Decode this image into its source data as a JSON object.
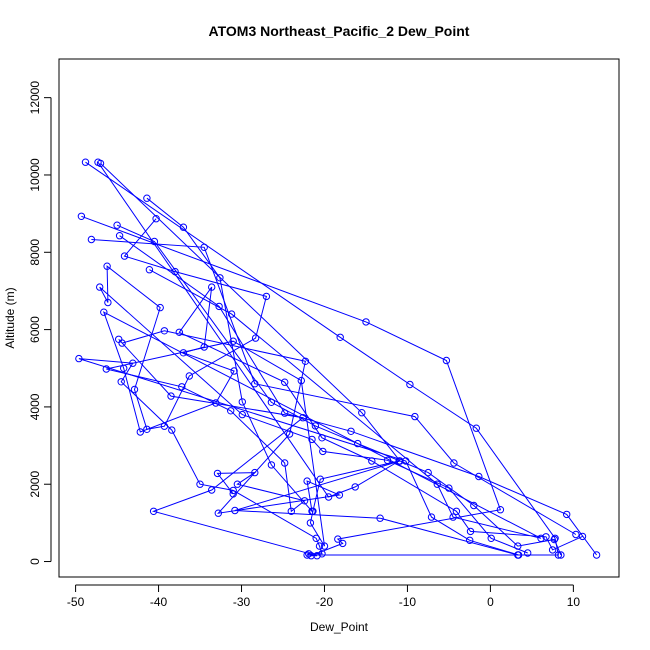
{
  "chart_data": {
    "type": "scatter",
    "title": "ATOM3 Northeast_Pacific_2 Dew_Point",
    "xlabel": "Dew_Point",
    "ylabel": "Altitude (m)",
    "xlim": [
      -52,
      15.5
    ],
    "ylim": [
      -400,
      13000
    ],
    "x_ticks": [
      -50,
      -40,
      -30,
      -20,
      -10,
      0,
      10
    ],
    "y_ticks": [
      0,
      2000,
      4000,
      6000,
      8000,
      10000,
      12000
    ],
    "grid": false,
    "color": "#0000ff",
    "marker": "open-circle",
    "series": [
      {
        "points": [
          [
            -48.8,
            10330
          ],
          [
            -18.1,
            5800
          ],
          [
            -9.7,
            4580
          ],
          [
            -1.7,
            3450
          ],
          [
            7.8,
            600
          ],
          [
            8.2,
            170
          ],
          [
            -22.1,
            170
          ],
          [
            -21.9,
            200
          ],
          [
            -20.3,
            200
          ],
          [
            -20.6,
            400
          ],
          [
            -21.0,
            600
          ],
          [
            -31.0,
            1840
          ],
          [
            -35.0,
            2000
          ],
          [
            -38.4,
            3400
          ],
          [
            -44.5,
            4650
          ],
          [
            -43.1,
            5130
          ],
          [
            -49.6,
            5250
          ],
          [
            -10.2,
            2600
          ],
          [
            -7.1,
            1150
          ],
          [
            -2.5,
            550
          ],
          [
            3.4,
            170
          ]
        ]
      },
      {
        "points": [
          [
            -47.3,
            10330
          ],
          [
            -19.5,
            1670
          ],
          [
            -16.3,
            1930
          ],
          [
            -11.0,
            2600
          ],
          [
            -20.5,
            2130
          ],
          [
            -21.4,
            1300
          ],
          [
            -21.7,
            1000
          ],
          [
            -20.0,
            400
          ],
          [
            -22.8,
            4680
          ],
          [
            -31.0,
            5700
          ],
          [
            -46.3,
            4980
          ],
          [
            -37.2,
            4520
          ],
          [
            -31.3,
            3900
          ],
          [
            -24.8,
            2550
          ],
          [
            -24.0,
            1300
          ],
          [
            -22.4,
            1570
          ],
          [
            -30.5,
            2000
          ],
          [
            -28.4,
            2300
          ],
          [
            -32.9,
            2280
          ],
          [
            -31.0,
            1750
          ]
        ]
      },
      {
        "points": [
          [
            -47.0,
            10300
          ],
          [
            -15.5,
            3850
          ],
          [
            -10.9,
            2600
          ],
          [
            -30.8,
            1320
          ],
          [
            -13.3,
            1120
          ],
          [
            3.3,
            170
          ]
        ]
      },
      {
        "points": [
          [
            -49.3,
            8930
          ],
          [
            -15.0,
            6200
          ],
          [
            -5.3,
            5200
          ],
          [
            1.2,
            1340
          ],
          [
            -18.4,
            580
          ],
          [
            -17.8,
            470
          ],
          [
            -21.6,
            150
          ],
          [
            -20.9,
            150
          ],
          [
            -40.6,
            1300
          ],
          [
            -33.6,
            1850
          ],
          [
            -22.6,
            3720
          ],
          [
            -38.5,
            4280
          ],
          [
            -44.8,
            5750
          ]
        ]
      },
      {
        "points": [
          [
            -48.1,
            8330
          ],
          [
            -34.5,
            8130
          ],
          [
            -28.4,
            4600
          ],
          [
            -9.1,
            3750
          ],
          [
            -4.4,
            2550
          ],
          [
            10.3,
            700
          ]
        ]
      },
      {
        "points": [
          [
            -41.4,
            9400
          ],
          [
            -37.0,
            8650
          ],
          [
            -32.6,
            7340
          ],
          [
            -29.9,
            4130
          ],
          [
            -26.4,
            2500
          ],
          [
            -21.5,
            1300
          ],
          [
            -22.1,
            2080
          ],
          [
            -18.2,
            1720
          ],
          [
            -32.8,
            1250
          ],
          [
            -24.2,
            3300
          ],
          [
            -22.3,
            5180
          ],
          [
            -39.3,
            5970
          ],
          [
            -44.4,
            5650
          ]
        ]
      },
      {
        "points": [
          [
            -45.0,
            8700
          ],
          [
            -40.5,
            8280
          ],
          [
            -26.4,
            4120
          ],
          [
            -21.1,
            3510
          ],
          [
            -16.0,
            3050
          ],
          [
            -7.5,
            2300
          ],
          [
            -2.0,
            1450
          ],
          [
            3.3,
            400
          ],
          [
            7.7,
            570
          ],
          [
            8.5,
            170
          ]
        ]
      },
      {
        "points": [
          [
            -44.7,
            8430
          ],
          [
            -32.7,
            6600
          ],
          [
            -24.8,
            3840
          ],
          [
            -16.8,
            3370
          ],
          [
            -1.4,
            2200
          ],
          [
            9.2,
            1220
          ],
          [
            12.8,
            170
          ]
        ]
      },
      {
        "points": [
          [
            -40.3,
            8870
          ],
          [
            -44.1,
            7900
          ],
          [
            -38.0,
            7500
          ],
          [
            -27.0,
            6860
          ],
          [
            -28.3,
            5780
          ],
          [
            -36.3,
            4800
          ],
          [
            -39.3,
            3500
          ],
          [
            -41.4,
            3420
          ],
          [
            -42.9,
            4450
          ],
          [
            -39.8,
            6570
          ],
          [
            -46.2,
            7640
          ],
          [
            -46.1,
            6700
          ],
          [
            -47.1,
            7100
          ],
          [
            -29.9,
            3800
          ],
          [
            -21.5,
            3160
          ],
          [
            -20.2,
            2850
          ],
          [
            -12.4,
            2620
          ],
          [
            -5.0,
            1900
          ],
          [
            0.1,
            600
          ],
          [
            4.5,
            220
          ]
        ]
      },
      {
        "points": [
          [
            -41.1,
            7550
          ],
          [
            -31.2,
            6400
          ],
          [
            -6.4,
            2000
          ],
          [
            -4.5,
            1150
          ],
          [
            6.1,
            600
          ],
          [
            -46.6,
            6450
          ],
          [
            -44.2,
            5000
          ],
          [
            -42.2,
            3350
          ],
          [
            -33.1,
            4100
          ],
          [
            -30.9,
            4930
          ],
          [
            -37.0,
            5400
          ],
          [
            -34.5,
            5550
          ],
          [
            -33.6,
            7100
          ],
          [
            -37.5,
            5930
          ],
          [
            -24.8,
            4640
          ],
          [
            -20.3,
            3200
          ],
          [
            -14.3,
            2600
          ],
          [
            -4.1,
            1300
          ],
          [
            -2.4,
            780
          ],
          [
            6.7,
            640
          ],
          [
            7.5,
            300
          ],
          [
            11.1,
            650
          ]
        ]
      }
    ]
  }
}
